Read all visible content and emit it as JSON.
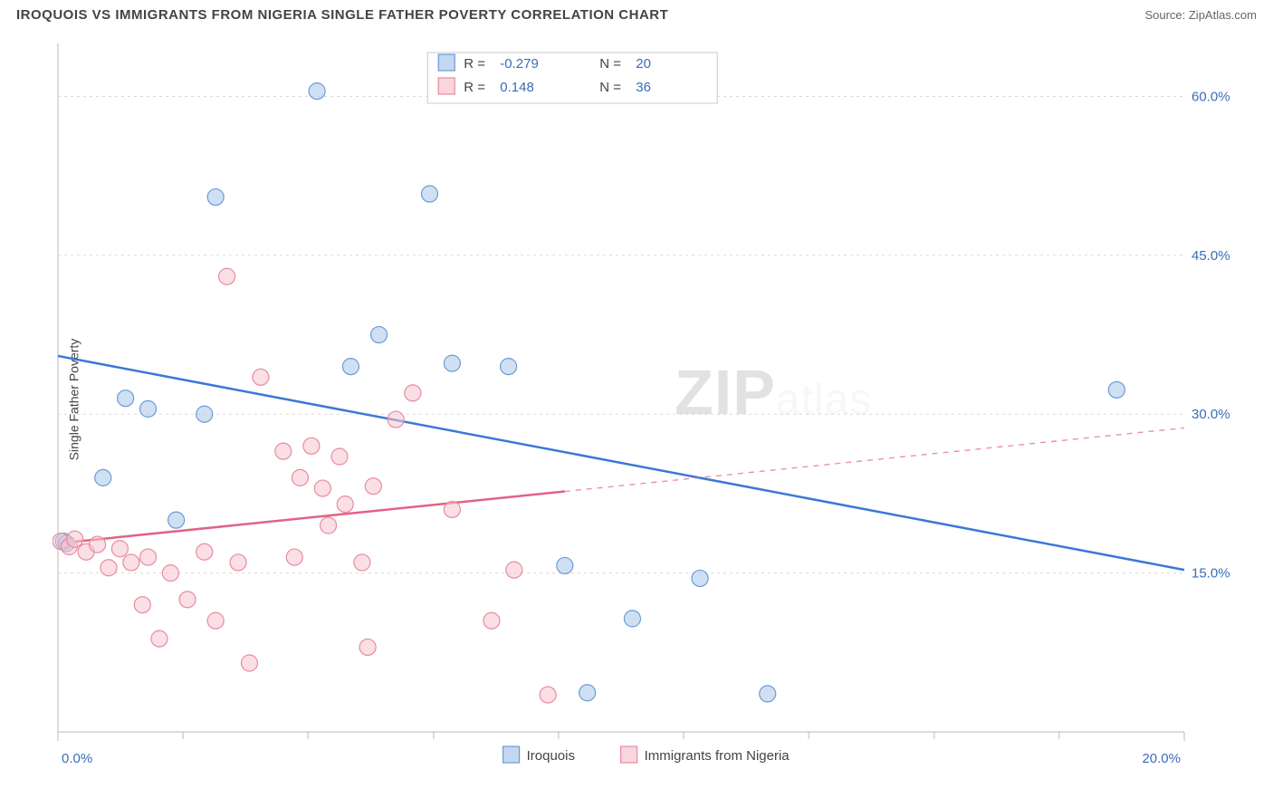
{
  "title": "IROQUOIS VS IMMIGRANTS FROM NIGERIA SINGLE FATHER POVERTY CORRELATION CHART",
  "source_label": "Source: ",
  "source_name": "ZipAtlas.com",
  "ylabel": "Single Father Poverty",
  "watermark_a": "ZIP",
  "watermark_b": "atlas",
  "chart": {
    "type": "scatter",
    "xlim": [
      0,
      20
    ],
    "ylim": [
      0,
      65
    ],
    "xticks": [
      0,
      20
    ],
    "xtick_labels": [
      "0.0%",
      "20.0%"
    ],
    "yticks": [
      15,
      30,
      45,
      60
    ],
    "ytick_labels": [
      "15.0%",
      "30.0%",
      "45.0%",
      "60.0%"
    ],
    "minor_xticks": [
      2.22,
      4.44,
      6.67,
      8.89,
      11.11,
      13.33,
      15.56,
      17.78
    ],
    "grid_color": "#d9d9d9",
    "axis_color": "#bbbbbb",
    "background": "#ffffff",
    "marker_radius": 9,
    "marker_stroke_width": 1.2
  },
  "series": [
    {
      "name": "Iroquois",
      "color_fill": "#a9c6ea",
      "color_stroke": "#6a9bd8",
      "line_color": "#3b78d6",
      "R": "-0.279",
      "N": "20",
      "trend": {
        "x1": 0,
        "y1": 35.5,
        "x2": 20,
        "y2": 15.3,
        "dashed": false
      },
      "points": [
        [
          0.1,
          18.0
        ],
        [
          0.15,
          17.8
        ],
        [
          0.8,
          24.0
        ],
        [
          1.2,
          31.5
        ],
        [
          1.6,
          30.5
        ],
        [
          2.1,
          20.0
        ],
        [
          2.6,
          30.0
        ],
        [
          2.8,
          50.5
        ],
        [
          4.6,
          60.5
        ],
        [
          5.2,
          34.5
        ],
        [
          5.7,
          37.5
        ],
        [
          6.6,
          50.8
        ],
        [
          7.0,
          34.8
        ],
        [
          8.0,
          34.5
        ],
        [
          9.0,
          15.7
        ],
        [
          9.4,
          3.7
        ],
        [
          10.2,
          10.7
        ],
        [
          11.4,
          14.5
        ],
        [
          12.6,
          3.6
        ],
        [
          18.8,
          32.3
        ]
      ]
    },
    {
      "name": "Immigrants from Nigeria",
      "color_fill": "#f5c4cf",
      "color_stroke": "#e88aa0",
      "line_color": "#e26284",
      "R": "0.148",
      "N": "36",
      "trend": {
        "x1": 0,
        "y1": 17.8,
        "x2": 20,
        "y2": 28.7,
        "dashed_from": 9.0
      },
      "points": [
        [
          0.05,
          18.0
        ],
        [
          0.2,
          17.5
        ],
        [
          0.3,
          18.2
        ],
        [
          0.5,
          17.0
        ],
        [
          0.7,
          17.7
        ],
        [
          0.9,
          15.5
        ],
        [
          1.1,
          17.3
        ],
        [
          1.3,
          16.0
        ],
        [
          1.5,
          12.0
        ],
        [
          1.6,
          16.5
        ],
        [
          1.8,
          8.8
        ],
        [
          2.0,
          15.0
        ],
        [
          2.3,
          12.5
        ],
        [
          2.6,
          17.0
        ],
        [
          2.8,
          10.5
        ],
        [
          3.0,
          43.0
        ],
        [
          3.2,
          16.0
        ],
        [
          3.4,
          6.5
        ],
        [
          3.6,
          33.5
        ],
        [
          4.0,
          26.5
        ],
        [
          4.2,
          16.5
        ],
        [
          4.3,
          24.0
        ],
        [
          4.5,
          27.0
        ],
        [
          4.7,
          23.0
        ],
        [
          4.8,
          19.5
        ],
        [
          5.0,
          26.0
        ],
        [
          5.1,
          21.5
        ],
        [
          5.4,
          16.0
        ],
        [
          5.5,
          8.0
        ],
        [
          5.6,
          23.2
        ],
        [
          6.0,
          29.5
        ],
        [
          6.3,
          32.0
        ],
        [
          7.0,
          21.0
        ],
        [
          7.7,
          10.5
        ],
        [
          8.1,
          15.3
        ],
        [
          8.7,
          3.5
        ]
      ]
    }
  ],
  "legend_top": {
    "R_label": "R =",
    "N_label": "N ="
  },
  "legend_bottom": {
    "swatch_size": 16
  }
}
